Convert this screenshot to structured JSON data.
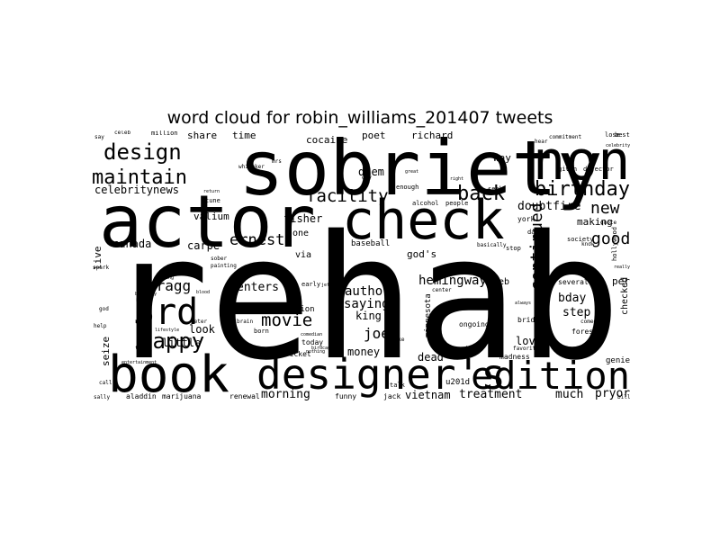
{
  "title": "word cloud for robin_williams_201407 tweets",
  "colors": {
    "text": "#000000",
    "background": "#ffffff"
  },
  "words": [
    {
      "text": "rehab",
      "weight": 1.0
    },
    {
      "text": "sobriety",
      "weight": 0.55
    },
    {
      "text": "actor",
      "weight": 0.5
    },
    {
      "text": "check",
      "weight": 0.48
    },
    {
      "text": "non",
      "weight": 0.45
    },
    {
      "text": "book",
      "weight": 0.45
    },
    {
      "text": "designer's",
      "weight": 0.4
    },
    {
      "text": "edition",
      "weight": 0.35
    },
    {
      "text": "3rd",
      "weight": 0.3
    },
    {
      "text": "design",
      "weight": 0.2
    },
    {
      "text": "maintain",
      "weight": 0.2
    },
    {
      "text": "birthday",
      "weight": 0.2
    },
    {
      "text": "happy",
      "weight": 0.2
    },
    {
      "text": "back",
      "weight": 0.2
    },
    {
      "text": "facility",
      "weight": 0.18
    },
    {
      "text": "movie",
      "weight": 0.17
    },
    {
      "text": "ernest",
      "weight": 0.16
    },
    {
      "text": "new",
      "weight": 0.16
    },
    {
      "text": "good",
      "weight": 0.16
    },
    {
      "text": "continued",
      "weight": 0.15
    },
    {
      "text": "joey",
      "weight": 0.14
    },
    {
      "text": "bragg",
      "weight": 0.13
    },
    {
      "text": "hemingway",
      "weight": 0.12
    },
    {
      "text": "author",
      "weight": 0.12
    },
    {
      "text": "saying",
      "weight": 0.12
    },
    {
      "text": "enters",
      "weight": 0.11
    },
    {
      "text": "treatment",
      "weight": 0.11
    },
    {
      "text": "much",
      "weight": 0.11
    },
    {
      "text": "pryor",
      "weight": 0.11
    },
    {
      "text": "morning",
      "weight": 0.11
    },
    {
      "text": "vietnam",
      "weight": 0.11
    },
    {
      "text": "celebritynews",
      "weight": 0.1
    },
    {
      "text": "doubtfire",
      "weight": 0.1
    },
    {
      "text": "canada",
      "weight": 0.1
    },
    {
      "text": "carpe",
      "weight": 0.1
    },
    {
      "text": "valium",
      "weight": 0.1
    },
    {
      "text": "diem",
      "weight": 0.1
    },
    {
      "text": "fisher",
      "weight": 0.1
    },
    {
      "text": "king",
      "weight": 0.1
    },
    {
      "text": "bday",
      "weight": 0.1
    },
    {
      "text": "step",
      "weight": 0.1
    },
    {
      "text": "love",
      "weight": 0.1
    },
    {
      "text": "dead",
      "weight": 0.1
    },
    {
      "text": "money",
      "weight": 0.1
    },
    {
      "text": "look",
      "weight": 0.1
    },
    {
      "text": "little",
      "weight": 0.1
    },
    {
      "text": "share",
      "weight": 0.09
    },
    {
      "text": "time",
      "weight": 0.09
    },
    {
      "text": "cocaine",
      "weight": 0.09
    },
    {
      "text": "poet",
      "weight": 0.09
    },
    {
      "text": "richard",
      "weight": 0.09
    },
    {
      "text": "way",
      "weight": 0.09
    },
    {
      "text": "web",
      "weight": 0.09
    },
    {
      "text": "one",
      "weight": 0.09
    },
    {
      "text": "via",
      "weight": 0.09
    },
    {
      "text": "god's",
      "weight": 0.09
    },
    {
      "text": "making",
      "weight": 0.09
    },
    {
      "text": "per",
      "weight": 0.09
    },
    {
      "text": "checked",
      "weight": 0.09
    },
    {
      "text": "live",
      "weight": 0.09
    },
    {
      "text": "seize",
      "weight": 0.09
    },
    {
      "text": "u201d",
      "weight": 0.08
    },
    {
      "text": "baseball",
      "weight": 0.07
    },
    {
      "text": "destruction",
      "weight": 0.07
    },
    {
      "text": "minnesota",
      "weight": 0.07
    },
    {
      "text": "genie",
      "weight": 0.07
    },
    {
      "text": "madness",
      "weight": 0.06
    },
    {
      "text": "aladdin",
      "weight": 0.06
    },
    {
      "text": "marijuana",
      "weight": 0.06
    },
    {
      "text": "renewal",
      "weight": 0.06
    },
    {
      "text": "funny",
      "weight": 0.06
    },
    {
      "text": "jack",
      "weight": 0.06
    },
    {
      "text": "cricket",
      "weight": 0.06
    },
    {
      "text": "today",
      "weight": 0.06
    },
    {
      "text": "ongoing",
      "weight": 0.06
    },
    {
      "text": "several",
      "weight": 0.06
    },
    {
      "text": "society",
      "weight": 0.06
    },
    {
      "text": "daily",
      "weight": 0.06
    },
    {
      "text": "york",
      "weight": 0.06
    },
    {
      "text": "bridges",
      "weight": 0.06
    },
    {
      "text": "forest",
      "weight": 0.06
    },
    {
      "text": "hollywood",
      "weight": 0.06
    },
    {
      "text": "million",
      "weight": 0.06
    },
    {
      "text": "celeb",
      "weight": 0.06
    },
    {
      "text": "commitment",
      "weight": 0.06
    },
    {
      "text": "lose",
      "weight": 0.06
    },
    {
      "text": "best",
      "weight": 0.06
    },
    {
      "text": "given",
      "weight": 0.06
    },
    {
      "text": "director",
      "weight": 0.06
    },
    {
      "text": "alcohol",
      "weight": 0.06
    },
    {
      "text": "people",
      "weight": 0.06
    },
    {
      "text": "seek",
      "weight": 0.06
    },
    {
      "text": "enough",
      "weight": 0.06
    },
    {
      "text": "spark",
      "weight": 0.05
    },
    {
      "text": "early",
      "weight": 0.05
    },
    {
      "text": "sober",
      "weight": 0.05
    },
    {
      "text": "painting",
      "weight": 0.05
    },
    {
      "text": "born",
      "weight": 0.05
    },
    {
      "text": "stop",
      "weight": 0.05
    },
    {
      "text": "basically",
      "weight": 0.05
    },
    {
      "text": "quote",
      "weight": 0.05
    },
    {
      "text": "know",
      "weight": 0.05
    },
    {
      "text": "talk",
      "weight": 0.05
    },
    {
      "text": "center",
      "weight": 0.05
    },
    {
      "text": "brain",
      "weight": 0.05
    },
    {
      "text": "peter",
      "weight": 0.05
    },
    {
      "text": "day",
      "weight": 0.05
    },
    {
      "text": "say",
      "weight": 0.04
    },
    {
      "text": "hear",
      "weight": 0.04
    },
    {
      "text": "word",
      "weight": 0.04
    },
    {
      "text": "make",
      "weight": 0.04
    },
    {
      "text": "help",
      "weight": 0.04
    },
    {
      "text": "god",
      "weight": 0.04
    },
    {
      "text": "call",
      "weight": 0.04
    },
    {
      "text": "sally",
      "weight": 0.04
    },
    {
      "text": "bill",
      "weight": 0.04
    },
    {
      "text": "comedy",
      "weight": 0.04
    },
    {
      "text": "favorite",
      "weight": 0.04
    },
    {
      "text": "always",
      "weight": 0.04
    },
    {
      "text": "tune",
      "weight": 0.04
    },
    {
      "text": "return",
      "weight": 0.04
    },
    {
      "text": "whitaker",
      "weight": 0.04
    },
    {
      "text": "mrs",
      "weight": 0.04
    },
    {
      "text": "jeff",
      "weight": 0.04
    },
    {
      "text": "comedian",
      "weight": 0.04
    },
    {
      "text": "birdcage",
      "weight": 0.04
    },
    {
      "text": "right",
      "weight": 0.04
    },
    {
      "text": "great",
      "weight": 0.04
    },
    {
      "text": "really",
      "weight": 0.04
    },
    {
      "text": "celebrity",
      "weight": 0.04
    },
    {
      "text": "hurting",
      "weight": 0.04
    },
    {
      "text": "broadway",
      "weight": 0.04
    },
    {
      "text": "blood",
      "weight": 0.04
    },
    {
      "text": "lifestyle",
      "weight": 0.04
    },
    {
      "text": "thing",
      "weight": 0.04
    },
    {
      "text": "entertainment",
      "weight": 0.04
    },
    {
      "text": "nothing",
      "weight": 0.04
    }
  ]
}
